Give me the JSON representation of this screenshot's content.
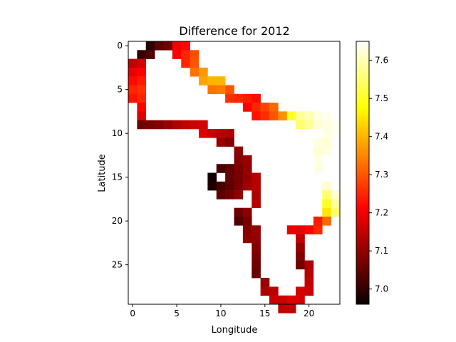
{
  "chart_data": {
    "type": "heatmap",
    "title": "Difference for 2012",
    "xlabel": "Longitude",
    "ylabel": "Latitude",
    "xlim": [
      -0.5,
      23.5
    ],
    "ylim": [
      29.5,
      -0.5
    ],
    "xticks": [
      0,
      5,
      10,
      15,
      20
    ],
    "yticks": [
      0,
      5,
      10,
      15,
      20,
      25
    ],
    "colormap": "hot",
    "colorbar": {
      "vmin": 6.96,
      "vmax": 7.65,
      "ticks": [
        "7.0",
        "7.1",
        "7.2",
        "7.3",
        "7.4",
        "7.5",
        "7.6"
      ],
      "tick_values": [
        7.0,
        7.1,
        7.2,
        7.3,
        7.4,
        7.5,
        7.6
      ]
    },
    "grid": false,
    "nan_color": "#ffffff",
    "cells": [
      [
        0,
        2,
        6.99
      ],
      [
        0,
        3,
        7.04
      ],
      [
        0,
        4,
        7.06
      ],
      [
        0,
        5,
        7.19
      ],
      [
        0,
        6,
        7.22
      ],
      [
        1,
        1,
        7.0
      ],
      [
        1,
        2,
        7.03
      ],
      [
        1,
        5,
        7.21
      ],
      [
        1,
        6,
        7.25
      ],
      [
        1,
        7,
        7.29
      ],
      [
        2,
        0,
        7.14
      ],
      [
        2,
        1,
        7.16
      ],
      [
        2,
        6,
        7.25
      ],
      [
        2,
        7,
        7.3
      ],
      [
        3,
        0,
        7.18
      ],
      [
        3,
        1,
        7.2
      ],
      [
        3,
        7,
        7.33
      ],
      [
        3,
        8,
        7.37
      ],
      [
        4,
        0,
        7.22
      ],
      [
        4,
        1,
        7.24
      ],
      [
        4,
        8,
        7.38
      ],
      [
        4,
        9,
        7.4
      ],
      [
        4,
        10,
        7.4
      ],
      [
        5,
        0,
        7.25
      ],
      [
        5,
        1,
        7.26
      ],
      [
        5,
        9,
        7.33
      ],
      [
        5,
        10,
        7.34
      ],
      [
        5,
        11,
        7.3
      ],
      [
        6,
        0,
        7.23
      ],
      [
        6,
        1,
        7.25
      ],
      [
        6,
        11,
        7.26
      ],
      [
        6,
        12,
        7.25
      ],
      [
        6,
        13,
        7.24
      ],
      [
        6,
        14,
        7.22
      ],
      [
        7,
        1,
        7.2
      ],
      [
        7,
        13,
        7.2
      ],
      [
        7,
        14,
        7.25
      ],
      [
        7,
        15,
        7.28
      ],
      [
        7,
        16,
        7.32
      ],
      [
        8,
        1,
        7.17
      ],
      [
        8,
        14,
        7.23
      ],
      [
        8,
        15,
        7.26
      ],
      [
        8,
        16,
        7.3
      ],
      [
        8,
        17,
        7.36
      ],
      [
        8,
        18,
        7.5
      ],
      [
        8,
        19,
        7.58
      ],
      [
        8,
        20,
        7.6
      ],
      [
        8,
        21,
        7.63
      ],
      [
        8,
        22,
        7.64
      ],
      [
        9,
        1,
        7.06
      ],
      [
        9,
        2,
        7.07
      ],
      [
        9,
        3,
        7.08
      ],
      [
        9,
        4,
        7.1
      ],
      [
        9,
        5,
        7.12
      ],
      [
        9,
        6,
        7.14
      ],
      [
        9,
        7,
        7.15
      ],
      [
        9,
        8,
        7.16
      ],
      [
        9,
        19,
        7.55
      ],
      [
        9,
        20,
        7.58
      ],
      [
        9,
        21,
        7.62
      ],
      [
        9,
        22,
        7.63
      ],
      [
        9,
        23,
        7.64
      ],
      [
        10,
        8,
        7.17
      ],
      [
        10,
        9,
        7.15
      ],
      [
        10,
        10,
        7.13
      ],
      [
        10,
        11,
        7.12
      ],
      [
        10,
        22,
        7.63
      ],
      [
        10,
        23,
        7.64
      ],
      [
        11,
        10,
        7.1
      ],
      [
        11,
        11,
        7.08
      ],
      [
        11,
        21,
        7.63
      ],
      [
        11,
        22,
        7.62
      ],
      [
        12,
        12,
        7.09
      ],
      [
        12,
        21,
        7.62
      ],
      [
        12,
        22,
        7.63
      ],
      [
        13,
        12,
        7.08
      ],
      [
        13,
        13,
        7.1
      ],
      [
        13,
        21,
        7.63
      ],
      [
        14,
        10,
        7.02
      ],
      [
        14,
        11,
        7.04
      ],
      [
        14,
        12,
        7.07
      ],
      [
        14,
        13,
        7.1
      ],
      [
        14,
        21,
        7.63
      ],
      [
        15,
        9,
        6.97
      ],
      [
        15,
        11,
        7.05
      ],
      [
        15,
        12,
        7.07
      ],
      [
        15,
        13,
        7.1
      ],
      [
        15,
        14,
        7.13
      ],
      [
        16,
        9,
        6.98
      ],
      [
        16,
        10,
        7.02
      ],
      [
        16,
        11,
        7.04
      ],
      [
        16,
        12,
        7.07
      ],
      [
        16,
        13,
        7.11
      ],
      [
        16,
        14,
        7.13
      ],
      [
        16,
        22,
        7.62
      ],
      [
        17,
        10,
        7.04
      ],
      [
        17,
        11,
        7.06
      ],
      [
        17,
        12,
        7.09
      ],
      [
        17,
        14,
        7.12
      ],
      [
        17,
        22,
        7.55
      ],
      [
        17,
        23,
        7.62
      ],
      [
        18,
        14,
        7.13
      ],
      [
        18,
        22,
        7.5
      ],
      [
        18,
        23,
        7.58
      ],
      [
        19,
        12,
        7.06
      ],
      [
        19,
        13,
        7.09
      ],
      [
        19,
        22,
        7.45
      ],
      [
        19,
        23,
        7.55
      ],
      [
        20,
        12,
        7.03
      ],
      [
        20,
        13,
        7.07
      ],
      [
        20,
        21,
        7.24
      ],
      [
        20,
        22,
        7.32
      ],
      [
        21,
        13,
        7.08
      ],
      [
        21,
        14,
        7.1
      ],
      [
        21,
        18,
        7.18
      ],
      [
        21,
        19,
        7.18
      ],
      [
        21,
        20,
        7.21
      ],
      [
        21,
        21,
        7.25
      ],
      [
        22,
        13,
        7.09
      ],
      [
        22,
        14,
        7.1
      ],
      [
        22,
        19,
        7.14
      ],
      [
        23,
        14,
        7.08
      ],
      [
        23,
        19,
        7.1
      ],
      [
        24,
        14,
        7.07
      ],
      [
        24,
        19,
        7.08
      ],
      [
        25,
        14,
        7.06
      ],
      [
        25,
        19,
        7.06
      ],
      [
        25,
        20,
        7.12
      ],
      [
        26,
        14,
        7.05
      ],
      [
        26,
        20,
        7.13
      ],
      [
        27,
        15,
        7.1
      ],
      [
        27,
        20,
        7.14
      ],
      [
        28,
        15,
        7.12
      ],
      [
        28,
        16,
        7.13
      ],
      [
        28,
        19,
        7.16
      ],
      [
        28,
        20,
        7.15
      ],
      [
        29,
        16,
        7.15
      ],
      [
        29,
        17,
        7.15
      ],
      [
        29,
        18,
        7.17
      ],
      [
        29,
        19,
        7.16
      ],
      [
        30,
        17,
        7.14
      ],
      [
        30,
        18,
        7.14
      ]
    ]
  }
}
